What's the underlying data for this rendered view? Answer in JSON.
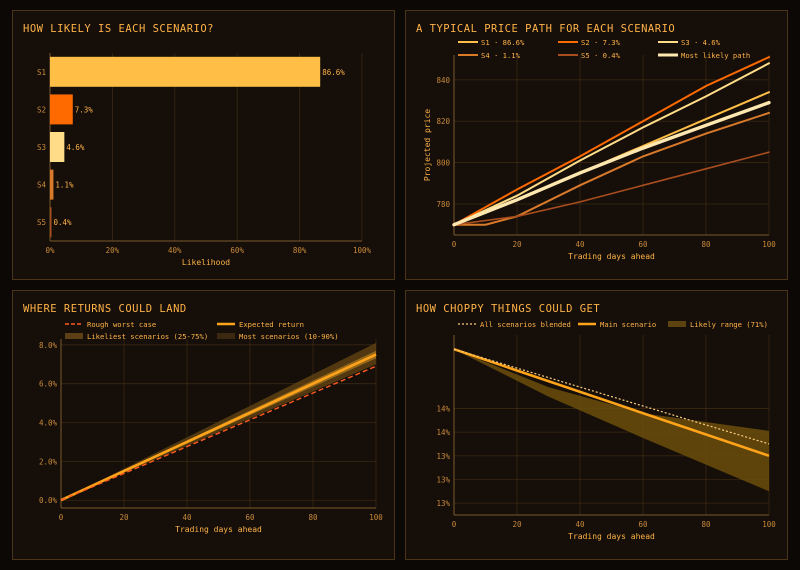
{
  "colors": {
    "accent": "#ffa31a",
    "s1": "#ffbf47",
    "s2": "#ff6a00",
    "s3": "#ffdd88",
    "s4": "#d97a2b",
    "s5": "#a84d1e",
    "likely": "#ffe7b0",
    "worst": "#ff5a1f",
    "grid": "#3a2812",
    "axis": "#7a5a2a",
    "tick": "#c98a3a",
    "label": "#ffb347"
  },
  "panels": {
    "p1": {
      "title": "HOW LIKELY IS EACH SCENARIO?"
    },
    "p2": {
      "title": "A TYPICAL PRICE PATH FOR EACH SCENARIO"
    },
    "p3": {
      "title": "WHERE RETURNS COULD LAND"
    },
    "p4": {
      "title": "HOW CHOPPY THINGS COULD GET"
    }
  },
  "chart_data": [
    {
      "type": "bar",
      "orientation": "horizontal",
      "title": "HOW LIKELY IS EACH SCENARIO?",
      "categories": [
        "S1",
        "S2",
        "S3",
        "S4",
        "S5"
      ],
      "values": [
        86.6,
        7.3,
        4.6,
        1.1,
        0.4
      ],
      "value_labels": [
        "86.6%",
        "7.3%",
        "4.6%",
        "1.1%",
        "0.4%"
      ],
      "xlabel": "Likelihood",
      "xlim": [
        0,
        100
      ],
      "xticks": [
        "0%",
        "20%",
        "40%",
        "60%",
        "80%",
        "100%"
      ],
      "grid": true
    },
    {
      "type": "line",
      "title": "A TYPICAL PRICE PATH FOR EACH SCENARIO",
      "xlabel": "Trading days ahead",
      "ylabel": "Projected price",
      "xlim": [
        0,
        100
      ],
      "ylim": [
        765,
        852
      ],
      "xticks": [
        "0",
        "20",
        "40",
        "60",
        "80",
        "100"
      ],
      "yticks": [
        "780",
        "800",
        "820",
        "840"
      ],
      "legend": "top",
      "series": [
        {
          "name": "S1 · 86.6%",
          "color": "#ffbf47",
          "x": [
            0,
            20,
            40,
            60,
            80,
            100
          ],
          "y": [
            770,
            782,
            795,
            808,
            821,
            834
          ]
        },
        {
          "name": "S2 · 7.3%",
          "color": "#ff6a00",
          "x": [
            0,
            20,
            40,
            60,
            80,
            100
          ],
          "y": [
            770,
            787,
            803,
            820,
            837,
            851
          ]
        },
        {
          "name": "S3 · 4.6%",
          "color": "#ffdd88",
          "x": [
            0,
            20,
            40,
            60,
            80,
            100
          ],
          "y": [
            770,
            784,
            801,
            817,
            832,
            848
          ]
        },
        {
          "name": "S4 · 1.1%",
          "color": "#d97a2b",
          "x": [
            0,
            10,
            20,
            40,
            60,
            80,
            100
          ],
          "y": [
            770,
            770,
            774,
            789,
            803,
            814,
            824
          ]
        },
        {
          "name": "S5 · 0.4%",
          "color": "#a84d1e",
          "x": [
            0,
            20,
            40,
            60,
            80,
            100
          ],
          "y": [
            770,
            774,
            781,
            789,
            797,
            805
          ]
        },
        {
          "name": "Most likely path",
          "color": "#ffe7b0",
          "x": [
            0,
            20,
            40,
            60,
            80,
            100
          ],
          "y": [
            770,
            782,
            795,
            807,
            818,
            829
          ]
        }
      ]
    },
    {
      "type": "area",
      "title": "WHERE RETURNS COULD LAND",
      "xlabel": "Trading days ahead",
      "xlim": [
        0,
        100
      ],
      "ylim": [
        -0.4,
        8.3
      ],
      "xticks": [
        "0",
        "20",
        "40",
        "60",
        "80",
        "100"
      ],
      "yticks": [
        "0.0%",
        "2.0%",
        "4.0%",
        "6.0%",
        "8.0%"
      ],
      "legend": "top",
      "series": [
        {
          "name": "Rough worst case",
          "style": "dashed",
          "x": [
            0,
            100
          ],
          "y": [
            0,
            6.9
          ]
        },
        {
          "name": "Expected return",
          "x": [
            0,
            100
          ],
          "y": [
            0,
            7.5
          ]
        },
        {
          "name": "Likeliest scenarios (25-75%)",
          "x": [
            0,
            100
          ],
          "lower": [
            0,
            7.3
          ],
          "upper": [
            0,
            7.7
          ]
        },
        {
          "name": "Most scenarios (10-90%)",
          "x": [
            0,
            100
          ],
          "lower": [
            0,
            7.0
          ],
          "upper": [
            0,
            8.1
          ]
        }
      ]
    },
    {
      "type": "area",
      "title": "HOW CHOPPY THINGS COULD GET",
      "xlabel": "Trading days ahead",
      "xlim": [
        0,
        100
      ],
      "ylim": [
        12.9,
        14.42
      ],
      "xticks": [
        "0",
        "20",
        "40",
        "60",
        "80",
        "100"
      ],
      "yticks": [
        "13%",
        "13%",
        "13%",
        "14%",
        "14%"
      ],
      "ytick_values": [
        13.0,
        13.2,
        13.4,
        13.6,
        13.8
      ],
      "legend": "top",
      "series": [
        {
          "name": "All scenarios blended",
          "style": "dotted",
          "x": [
            0,
            100
          ],
          "y": [
            14.3,
            13.5
          ]
        },
        {
          "name": "Main scenario",
          "x": [
            0,
            100
          ],
          "y": [
            14.3,
            13.4
          ]
        },
        {
          "name": "Likely range (71%)",
          "x": [
            0,
            30,
            60,
            100
          ],
          "lower": [
            14.3,
            13.9,
            13.55,
            13.1
          ],
          "upper": [
            14.3,
            13.98,
            13.76,
            13.61
          ]
        }
      ]
    }
  ]
}
